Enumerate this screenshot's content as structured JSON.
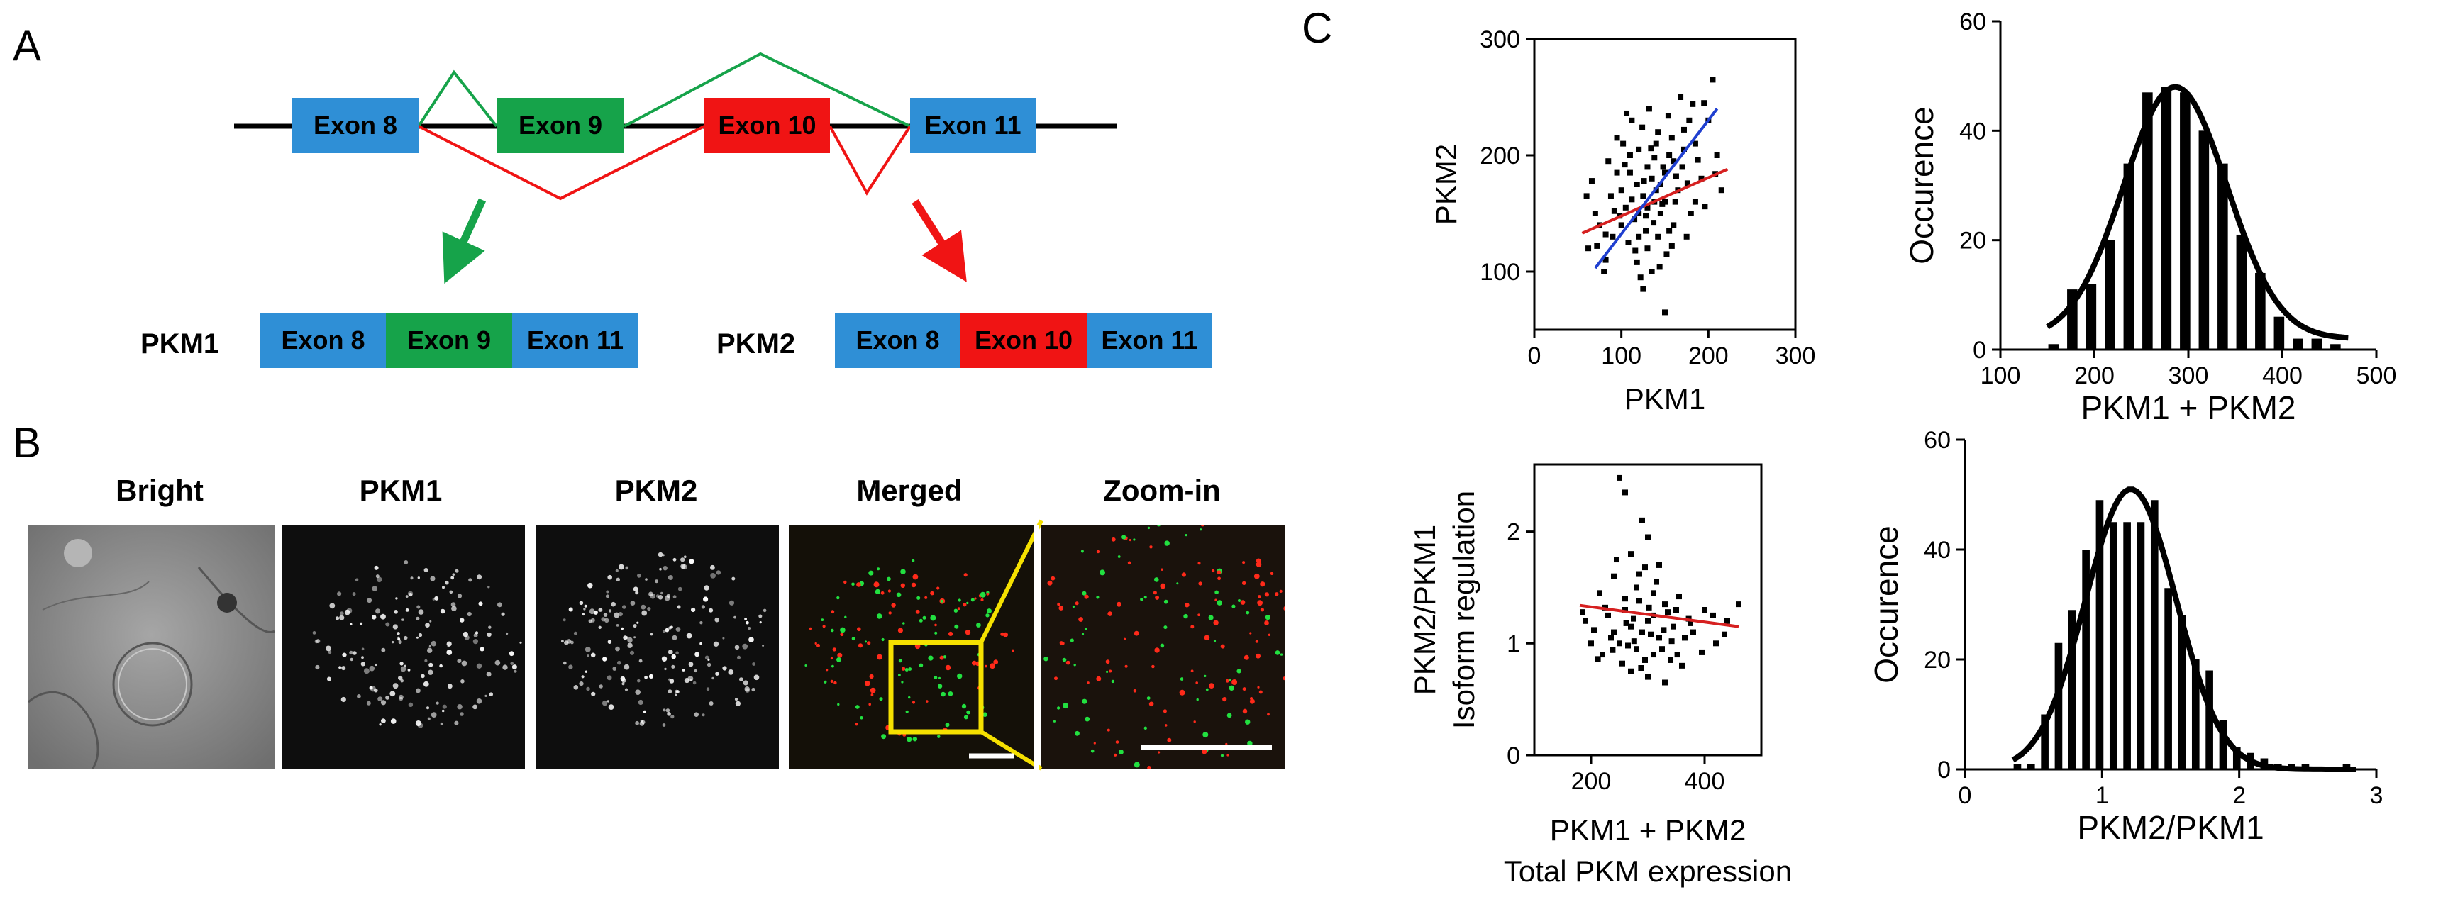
{
  "panels": {
    "a": "A",
    "b": "B",
    "c": "C"
  },
  "panelA": {
    "top_exons": [
      "Exon 8",
      "Exon 9",
      "Exon 10",
      "Exon 11"
    ],
    "pkm1": {
      "label": "PKM1",
      "exons": [
        "Exon 8",
        "Exon 9",
        "Exon 11"
      ]
    },
    "pkm2": {
      "label": "PKM2",
      "exons": [
        "Exon 8",
        "Exon 10",
        "Exon 11"
      ]
    },
    "colors": {
      "exon_blue": "#2f8fd6",
      "exon_green": "#16a34a",
      "exon_red": "#f01414"
    }
  },
  "panelB": {
    "titles": [
      "Bright",
      "PKM1",
      "PKM2",
      "Merged",
      "Zoom-in"
    ]
  },
  "chart_data": [
    {
      "type": "scatter",
      "xlabel": "PKM1",
      "ylabel": "PKM2",
      "xlim": [
        0,
        300
      ],
      "ylim": [
        50,
        300
      ],
      "xticks": [
        0,
        100,
        200,
        300
      ],
      "yticks": [
        100,
        200,
        300
      ],
      "fit_lines": [
        {
          "color": "#d62020",
          "x": [
            55,
            222
          ],
          "y": [
            133,
            188
          ]
        },
        {
          "color": "#1f3fd0",
          "x": [
            70,
            210
          ],
          "y": [
            103,
            240
          ]
        }
      ],
      "points": [
        [
          120,
          150
        ],
        [
          135,
          180
        ],
        [
          100,
          170
        ],
        [
          150,
          160
        ],
        [
          160,
          140
        ],
        [
          110,
          200
        ],
        [
          140,
          210
        ],
        [
          90,
          130
        ],
        [
          130,
          120
        ],
        [
          170,
          190
        ],
        [
          125,
          165
        ],
        [
          115,
          145
        ],
        [
          145,
          175
        ],
        [
          155,
          200
        ],
        [
          105,
          155
        ],
        [
          95,
          185
        ],
        [
          165,
          170
        ],
        [
          185,
          210
        ],
        [
          75,
          140
        ],
        [
          200,
          230
        ],
        [
          180,
          150
        ],
        [
          128,
          135
        ],
        [
          138,
          160
        ],
        [
          148,
          190
        ],
        [
          108,
          125
        ],
        [
          118,
          175
        ],
        [
          88,
          165
        ],
        [
          172,
          205
        ],
        [
          192,
          180
        ],
        [
          62,
          120
        ],
        [
          82,
          110
        ],
        [
          122,
          95
        ],
        [
          142,
          130
        ],
        [
          152,
          115
        ],
        [
          162,
          160
        ],
        [
          102,
          210
        ],
        [
          112,
          230
        ],
        [
          132,
          240
        ],
        [
          142,
          220
        ],
        [
          168,
          250
        ],
        [
          205,
          265
        ],
        [
          195,
          245
        ],
        [
          178,
          230
        ],
        [
          158,
          215
        ],
        [
          135,
          100
        ],
        [
          125,
          85
        ],
        [
          150,
          65
        ],
        [
          80,
          100
        ],
        [
          70,
          150
        ],
        [
          60,
          165
        ],
        [
          85,
          195
        ],
        [
          95,
          215
        ],
        [
          110,
          185
        ],
        [
          120,
          205
        ],
        [
          130,
          190
        ],
        [
          145,
          150
        ],
        [
          155,
          135
        ],
        [
          175,
          130
        ],
        [
          185,
          160
        ],
        [
          210,
          200
        ],
        [
          215,
          170
        ],
        [
          100,
          140
        ],
        [
          140,
          170
        ],
        [
          120,
          130
        ],
        [
          130,
          155
        ],
        [
          150,
          185
        ],
        [
          160,
          195
        ],
        [
          112,
          162
        ],
        [
          98,
          148
        ],
        [
          126,
          178
        ],
        [
          137,
          142
        ],
        [
          147,
          158
        ],
        [
          163,
          182
        ],
        [
          116,
          118
        ],
        [
          104,
          192
        ],
        [
          134,
          206
        ],
        [
          176,
          176
        ],
        [
          188,
          196
        ],
        [
          92,
          152
        ],
        [
          82,
          132
        ],
        [
          72,
          122
        ],
        [
          66,
          178
        ],
        [
          118,
          108
        ],
        [
          144,
          104
        ],
        [
          158,
          122
        ],
        [
          196,
          156
        ],
        [
          208,
          184
        ],
        [
          124,
          224
        ],
        [
          106,
          236
        ],
        [
          172,
          222
        ],
        [
          182,
          244
        ],
        [
          154,
          234
        ],
        [
          138,
          198
        ],
        [
          128,
          148
        ]
      ]
    },
    {
      "type": "bar",
      "xlabel": "PKM1 + PKM2",
      "ylabel": "Occurence",
      "xlim": [
        100,
        500
      ],
      "ylim": [
        0,
        60
      ],
      "xticks": [
        100,
        200,
        300,
        400,
        500
      ],
      "yticks": [
        0,
        20,
        40,
        60
      ],
      "bin_centers": [
        160,
        180,
        200,
        220,
        240,
        260,
        280,
        300,
        320,
        340,
        360,
        380,
        400,
        420,
        440,
        460
      ],
      "values": [
        1,
        11,
        12,
        20,
        34,
        47,
        48,
        47,
        40,
        34,
        21,
        14,
        6,
        2,
        2,
        1
      ],
      "fit_curve": {
        "type": "gaussian",
        "amplitude": 46,
        "mean": 286,
        "sd": 55,
        "baseline": 2
      }
    },
    {
      "type": "scatter",
      "xlabel": "PKM1 + PKM2",
      "xlabel2": "Total PKM expression",
      "ylabel": "PKM2/PKM1",
      "ylabel2": "Isoform regulation",
      "xlim": [
        100,
        500
      ],
      "ylim": [
        0,
        2.6
      ],
      "xticks": [
        200,
        400
      ],
      "yticks": [
        0,
        1,
        2
      ],
      "fit_lines": [
        {
          "color": "#d62020",
          "x": [
            180,
            460
          ],
          "y": [
            1.34,
            1.15
          ]
        }
      ],
      "points": [
        [
          250,
          2.48
        ],
        [
          260,
          2.35
        ],
        [
          290,
          2.1
        ],
        [
          300,
          1.95
        ],
        [
          270,
          1.8
        ],
        [
          320,
          1.7
        ],
        [
          240,
          1.6
        ],
        [
          280,
          1.5
        ],
        [
          310,
          1.45
        ],
        [
          260,
          1.4
        ],
        [
          330,
          1.35
        ],
        [
          350,
          1.3
        ],
        [
          230,
          1.25
        ],
        [
          300,
          1.2
        ],
        [
          270,
          1.15
        ],
        [
          290,
          1.1
        ],
        [
          320,
          1.05
        ],
        [
          250,
          1.0
        ],
        [
          280,
          0.95
        ],
        [
          310,
          0.9
        ],
        [
          340,
          0.85
        ],
        [
          360,
          0.8
        ],
        [
          220,
          0.9
        ],
        [
          200,
          1.0
        ],
        [
          190,
          1.2
        ],
        [
          380,
          1.1
        ],
        [
          400,
          1.3
        ],
        [
          420,
          1.0
        ],
        [
          440,
          1.2
        ],
        [
          460,
          1.35
        ],
        [
          300,
          0.7
        ],
        [
          330,
          0.65
        ],
        [
          270,
          0.75
        ],
        [
          240,
          1.1
        ],
        [
          260,
          1.3
        ],
        [
          310,
          1.25
        ],
        [
          345,
          1.15
        ],
        [
          285,
          1.38
        ],
        [
          215,
          1.45
        ],
        [
          365,
          1.05
        ],
        [
          325,
          0.95
        ],
        [
          295,
          0.85
        ],
        [
          255,
          0.82
        ],
        [
          235,
          1.05
        ],
        [
          275,
          1.22
        ],
        [
          305,
          1.08
        ],
        [
          335,
          1.28
        ],
        [
          355,
          1.42
        ],
        [
          225,
          1.32
        ],
        [
          265,
          0.98
        ],
        [
          315,
          1.55
        ],
        [
          285,
          1.62
        ],
        [
          245,
          1.75
        ],
        [
          295,
          1.68
        ],
        [
          205,
          1.12
        ],
        [
          375,
          1.18
        ],
        [
          395,
          0.92
        ],
        [
          415,
          1.25
        ],
        [
          435,
          1.08
        ],
        [
          185,
          1.28
        ],
        [
          212,
          0.86
        ],
        [
          342,
          1.02
        ],
        [
          262,
          1.18
        ],
        [
          302,
          1.32
        ],
        [
          328,
          1.12
        ],
        [
          276,
          1.02
        ],
        [
          238,
          0.94
        ],
        [
          288,
          0.78
        ],
        [
          352,
          0.9
        ],
        [
          372,
          1.22
        ]
      ]
    },
    {
      "type": "bar",
      "xlabel": "PKM2/PKM1",
      "ylabel": "Occurence",
      "xlim": [
        0,
        3
      ],
      "ylim": [
        0,
        60
      ],
      "xticks": [
        0,
        1,
        2,
        3
      ],
      "yticks": [
        0,
        20,
        40,
        60
      ],
      "bin_centers": [
        0.4,
        0.5,
        0.6,
        0.7,
        0.8,
        0.9,
        1.0,
        1.1,
        1.2,
        1.3,
        1.4,
        1.5,
        1.6,
        1.7,
        1.8,
        1.9,
        2.0,
        2.1,
        2.2,
        2.3,
        2.4,
        2.5,
        2.8
      ],
      "values": [
        1,
        1,
        10,
        23,
        29,
        40,
        49,
        45,
        45,
        45,
        49,
        33,
        28,
        20,
        18,
        9,
        4,
        3,
        2,
        1,
        1,
        1,
        1
      ],
      "fit_curve": {
        "type": "gaussian",
        "amplitude": 51,
        "mean": 1.21,
        "sd": 0.33,
        "baseline": 0
      }
    }
  ]
}
